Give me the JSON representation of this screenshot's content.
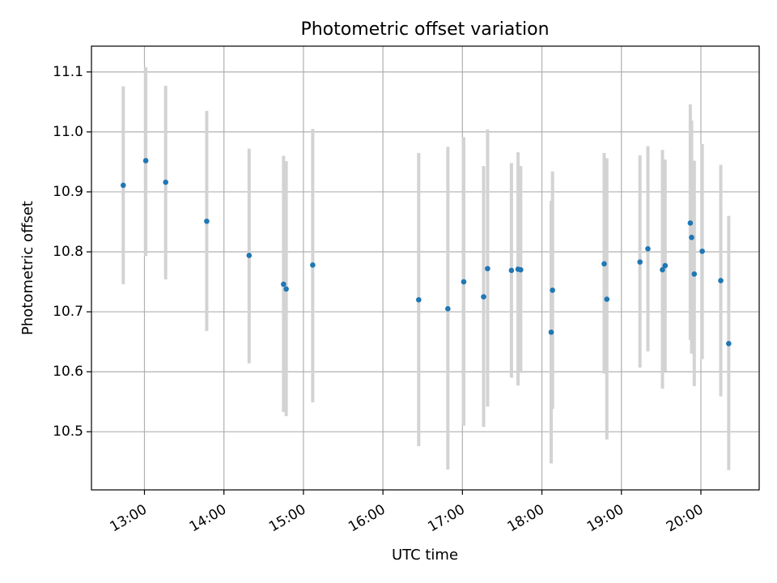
{
  "chart_data": {
    "type": "scatter",
    "title": "Photometric offset variation",
    "xlabel": "UTC time",
    "ylabel": "Photometric offset",
    "x_ticks": [
      "13:00",
      "14:00",
      "15:00",
      "16:00",
      "17:00",
      "18:00",
      "19:00",
      "20:00"
    ],
    "y_ticks": [
      "10.5",
      "10.6",
      "10.7",
      "10.8",
      "10.9",
      "11.0",
      "11.1"
    ],
    "xlim": [
      "12:20",
      "20:44"
    ],
    "ylim": [
      10.403,
      11.143
    ],
    "grid": true,
    "point_color": "#1f77b4",
    "errorbar_color": "#d3d3d3",
    "points": [
      {
        "t": "12:44",
        "y": 10.911,
        "lo": 10.746,
        "hi": 11.076
      },
      {
        "t": "13:01",
        "y": 10.952,
        "lo": 10.793,
        "hi": 11.108
      },
      {
        "t": "13:16",
        "y": 10.916,
        "lo": 10.754,
        "hi": 11.077
      },
      {
        "t": "13:47",
        "y": 10.851,
        "lo": 10.668,
        "hi": 11.035
      },
      {
        "t": "14:19",
        "y": 10.794,
        "lo": 10.614,
        "hi": 10.972
      },
      {
        "t": "14:45",
        "y": 10.746,
        "lo": 10.533,
        "hi": 10.96
      },
      {
        "t": "14:47",
        "y": 10.738,
        "lo": 10.526,
        "hi": 10.951
      },
      {
        "t": "15:07",
        "y": 10.778,
        "lo": 10.549,
        "hi": 11.005
      },
      {
        "t": "16:27",
        "y": 10.72,
        "lo": 10.476,
        "hi": 10.965
      },
      {
        "t": "16:49",
        "y": 10.705,
        "lo": 10.437,
        "hi": 10.975
      },
      {
        "t": "17:01",
        "y": 10.75,
        "lo": 10.51,
        "hi": 10.991
      },
      {
        "t": "17:16",
        "y": 10.725,
        "lo": 10.508,
        "hi": 10.943
      },
      {
        "t": "17:19",
        "y": 10.772,
        "lo": 10.542,
        "hi": 11.004
      },
      {
        "t": "17:37",
        "y": 10.769,
        "lo": 10.59,
        "hi": 10.948
      },
      {
        "t": "17:42",
        "y": 10.771,
        "lo": 10.577,
        "hi": 10.966
      },
      {
        "t": "17:44",
        "y": 10.77,
        "lo": 10.598,
        "hi": 10.943
      },
      {
        "t": "18:07",
        "y": 10.666,
        "lo": 10.447,
        "hi": 10.885
      },
      {
        "t": "18:08",
        "y": 10.736,
        "lo": 10.538,
        "hi": 10.934
      },
      {
        "t": "18:47",
        "y": 10.78,
        "lo": 10.597,
        "hi": 10.965
      },
      {
        "t": "18:49",
        "y": 10.721,
        "lo": 10.487,
        "hi": 10.956
      },
      {
        "t": "19:14",
        "y": 10.783,
        "lo": 10.607,
        "hi": 10.961
      },
      {
        "t": "19:20",
        "y": 10.805,
        "lo": 10.634,
        "hi": 10.976
      },
      {
        "t": "19:31",
        "y": 10.77,
        "lo": 10.572,
        "hi": 10.97
      },
      {
        "t": "19:33",
        "y": 10.777,
        "lo": 10.601,
        "hi": 10.954
      },
      {
        "t": "19:52",
        "y": 10.848,
        "lo": 10.653,
        "hi": 11.046
      },
      {
        "t": "19:53",
        "y": 10.824,
        "lo": 10.63,
        "hi": 11.019
      },
      {
        "t": "19:55",
        "y": 10.763,
        "lo": 10.576,
        "hi": 10.952
      },
      {
        "t": "20:01",
        "y": 10.801,
        "lo": 10.621,
        "hi": 10.98
      },
      {
        "t": "20:15",
        "y": 10.752,
        "lo": 10.559,
        "hi": 10.945
      },
      {
        "t": "20:21",
        "y": 10.647,
        "lo": 10.436,
        "hi": 10.86
      }
    ]
  }
}
